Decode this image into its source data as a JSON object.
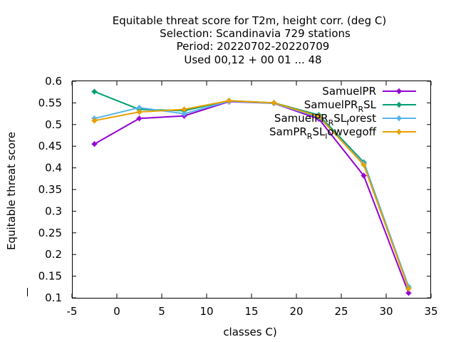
{
  "chart_data": {
    "type": "line",
    "title_lines": [
      "Equitable threat score  for T2m, height corr. (deg C)",
      "Selection: Scandinavia    729 stations",
      "Period: 20220702-20220709",
      "Used  00,12  + 00 01 ... 48"
    ],
    "xlabel": "classes C)",
    "ylabel": "Equitable threat score",
    "xlim": [
      -5,
      35
    ],
    "ylim": [
      0.1,
      0.6
    ],
    "xticks": [
      "-5",
      "0",
      "5",
      "10",
      "15",
      "20",
      "25",
      "30",
      "35"
    ],
    "yticks": [
      "0.1",
      "0.15",
      "0.2",
      "0.25",
      "0.3",
      "0.35",
      "0.4",
      "0.45",
      "0.5",
      "0.55",
      "0.6"
    ],
    "x": [
      -2.5,
      2.5,
      7.5,
      12.5,
      17.5,
      22.5,
      27.5,
      32.5
    ],
    "legend_position": "top-right",
    "grid": false,
    "series": [
      {
        "name_parts": [
          {
            "text": "SamuelPR",
            "sub": false
          }
        ],
        "color": "#9400d3",
        "values": [
          0.455,
          0.514,
          0.52,
          0.553,
          0.549,
          0.513,
          0.382,
          0.111
        ]
      },
      {
        "name_parts": [
          {
            "text": "SamuelPR",
            "sub": false
          },
          {
            "text": "R",
            "sub": true
          },
          {
            "text": "SL",
            "sub": false
          }
        ],
        "color": "#009e73",
        "values": [
          0.576,
          0.535,
          0.532,
          0.555,
          0.55,
          0.522,
          0.413,
          0.125
        ]
      },
      {
        "name_parts": [
          {
            "text": "SamuelPR",
            "sub": false
          },
          {
            "text": "R",
            "sub": true
          },
          {
            "text": "SL",
            "sub": false
          },
          {
            "text": "f",
            "sub": true
          },
          {
            "text": "orest",
            "sub": false
          }
        ],
        "color": "#56b4e9",
        "values": [
          0.514,
          0.539,
          0.525,
          0.554,
          0.549,
          0.517,
          0.41,
          0.126
        ]
      },
      {
        "name_parts": [
          {
            "text": "SamPR",
            "sub": false
          },
          {
            "text": "R",
            "sub": true
          },
          {
            "text": "SL",
            "sub": false
          },
          {
            "text": "l",
            "sub": true
          },
          {
            "text": "owvegoff",
            "sub": false
          }
        ],
        "color": "#e69f00",
        "values": [
          0.509,
          0.529,
          0.535,
          0.555,
          0.55,
          0.519,
          0.407,
          0.121
        ]
      }
    ]
  }
}
